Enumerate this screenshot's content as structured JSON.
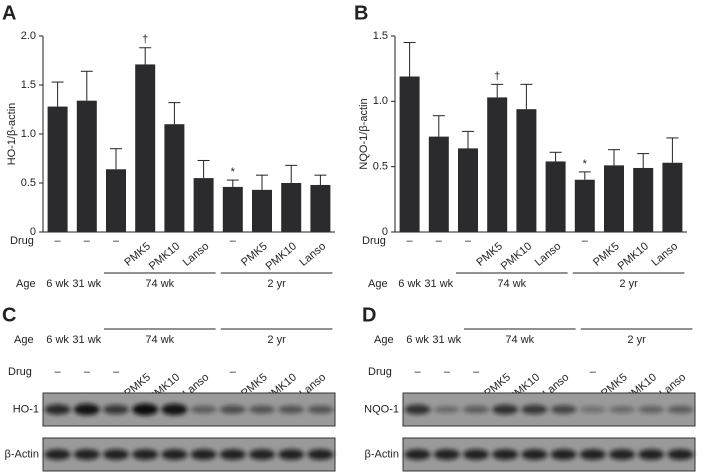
{
  "chart_data": [
    {
      "type": "bar",
      "panel": "A",
      "ylabel": "HO-1/β-actin",
      "drug_label": "Drug",
      "age_label": "Age",
      "categories": [
        "–",
        "–",
        "–",
        "PMK5",
        "PMK10",
        "Lanso",
        "–",
        "PMK5",
        "PMK10",
        "Lanso"
      ],
      "age_groups": [
        "6 wk",
        "31 wk",
        "74 wk",
        "2 yr"
      ],
      "series": [
        {
          "name": "HO-1",
          "color": "#2b2b2e",
          "values": [
            1.28,
            1.34,
            0.64,
            1.71,
            1.1,
            0.55,
            0.46,
            0.43,
            0.5,
            0.48
          ],
          "errors": [
            0.25,
            0.3,
            0.21,
            0.17,
            0.22,
            0.18,
            0.07,
            0.15,
            0.18,
            0.1
          ]
        }
      ],
      "annotations": [
        {
          "text": "†",
          "bar": 3
        },
        {
          "text": "*",
          "bar": 6
        }
      ],
      "ylim": [
        0,
        2.0
      ],
      "yticks": [
        0,
        0.5,
        {
          "value": 1.0,
          "label": "1.0"
        },
        1.5,
        {
          "value": 2.0,
          "label": "2.0"
        }
      ]
    },
    {
      "type": "bar",
      "panel": "B",
      "ylabel": "NQO-1/β-actin",
      "drug_label": "Drug",
      "age_label": "Age",
      "categories": [
        "–",
        "–",
        "–",
        "PMK5",
        "PMK10",
        "Lanso",
        "–",
        "PMK5",
        "PMK10",
        "Lanso"
      ],
      "age_groups": [
        "6 wk",
        "31 wk",
        "74 wk",
        "2 yr"
      ],
      "series": [
        {
          "name": "NQO-1",
          "color": "#2b2b2e",
          "values": [
            1.19,
            0.73,
            0.64,
            1.03,
            0.94,
            0.54,
            0.4,
            0.51,
            0.49,
            0.53
          ],
          "errors": [
            0.26,
            0.16,
            0.13,
            0.1,
            0.19,
            0.07,
            0.06,
            0.12,
            0.11,
            0.19
          ]
        }
      ],
      "annotations": [
        {
          "text": "†",
          "bar": 3
        },
        {
          "text": "*",
          "bar": 6
        }
      ],
      "ylim": [
        0,
        1.5
      ],
      "yticks": [
        0,
        0.5,
        {
          "value": 1.0,
          "label": "1.0"
        },
        1.5
      ]
    }
  ],
  "blots": [
    {
      "panel": "C",
      "age_label": "Age",
      "drug_label": "Drug",
      "ages": [
        "6 wk",
        "31 wk",
        "74 wk",
        "2 yr"
      ],
      "drugs": [
        "–",
        "–",
        "–",
        "PMK5",
        "PMK10",
        "Lanso",
        "–",
        "PMK5",
        "PMK10",
        "Lanso"
      ],
      "rows": [
        "HO-1",
        "β-Actin"
      ]
    },
    {
      "panel": "D",
      "age_label": "Age",
      "drug_label": "Drug",
      "ages": [
        "6 wk",
        "31 wk",
        "74 wk",
        "2 yr"
      ],
      "drugs": [
        "–",
        "–",
        "–",
        "PMK5",
        "PMK10",
        "Lanso",
        "–",
        "PMK5",
        "PMK10",
        "Lanso"
      ],
      "rows": [
        "NQO-1",
        "β-Actin"
      ]
    }
  ]
}
